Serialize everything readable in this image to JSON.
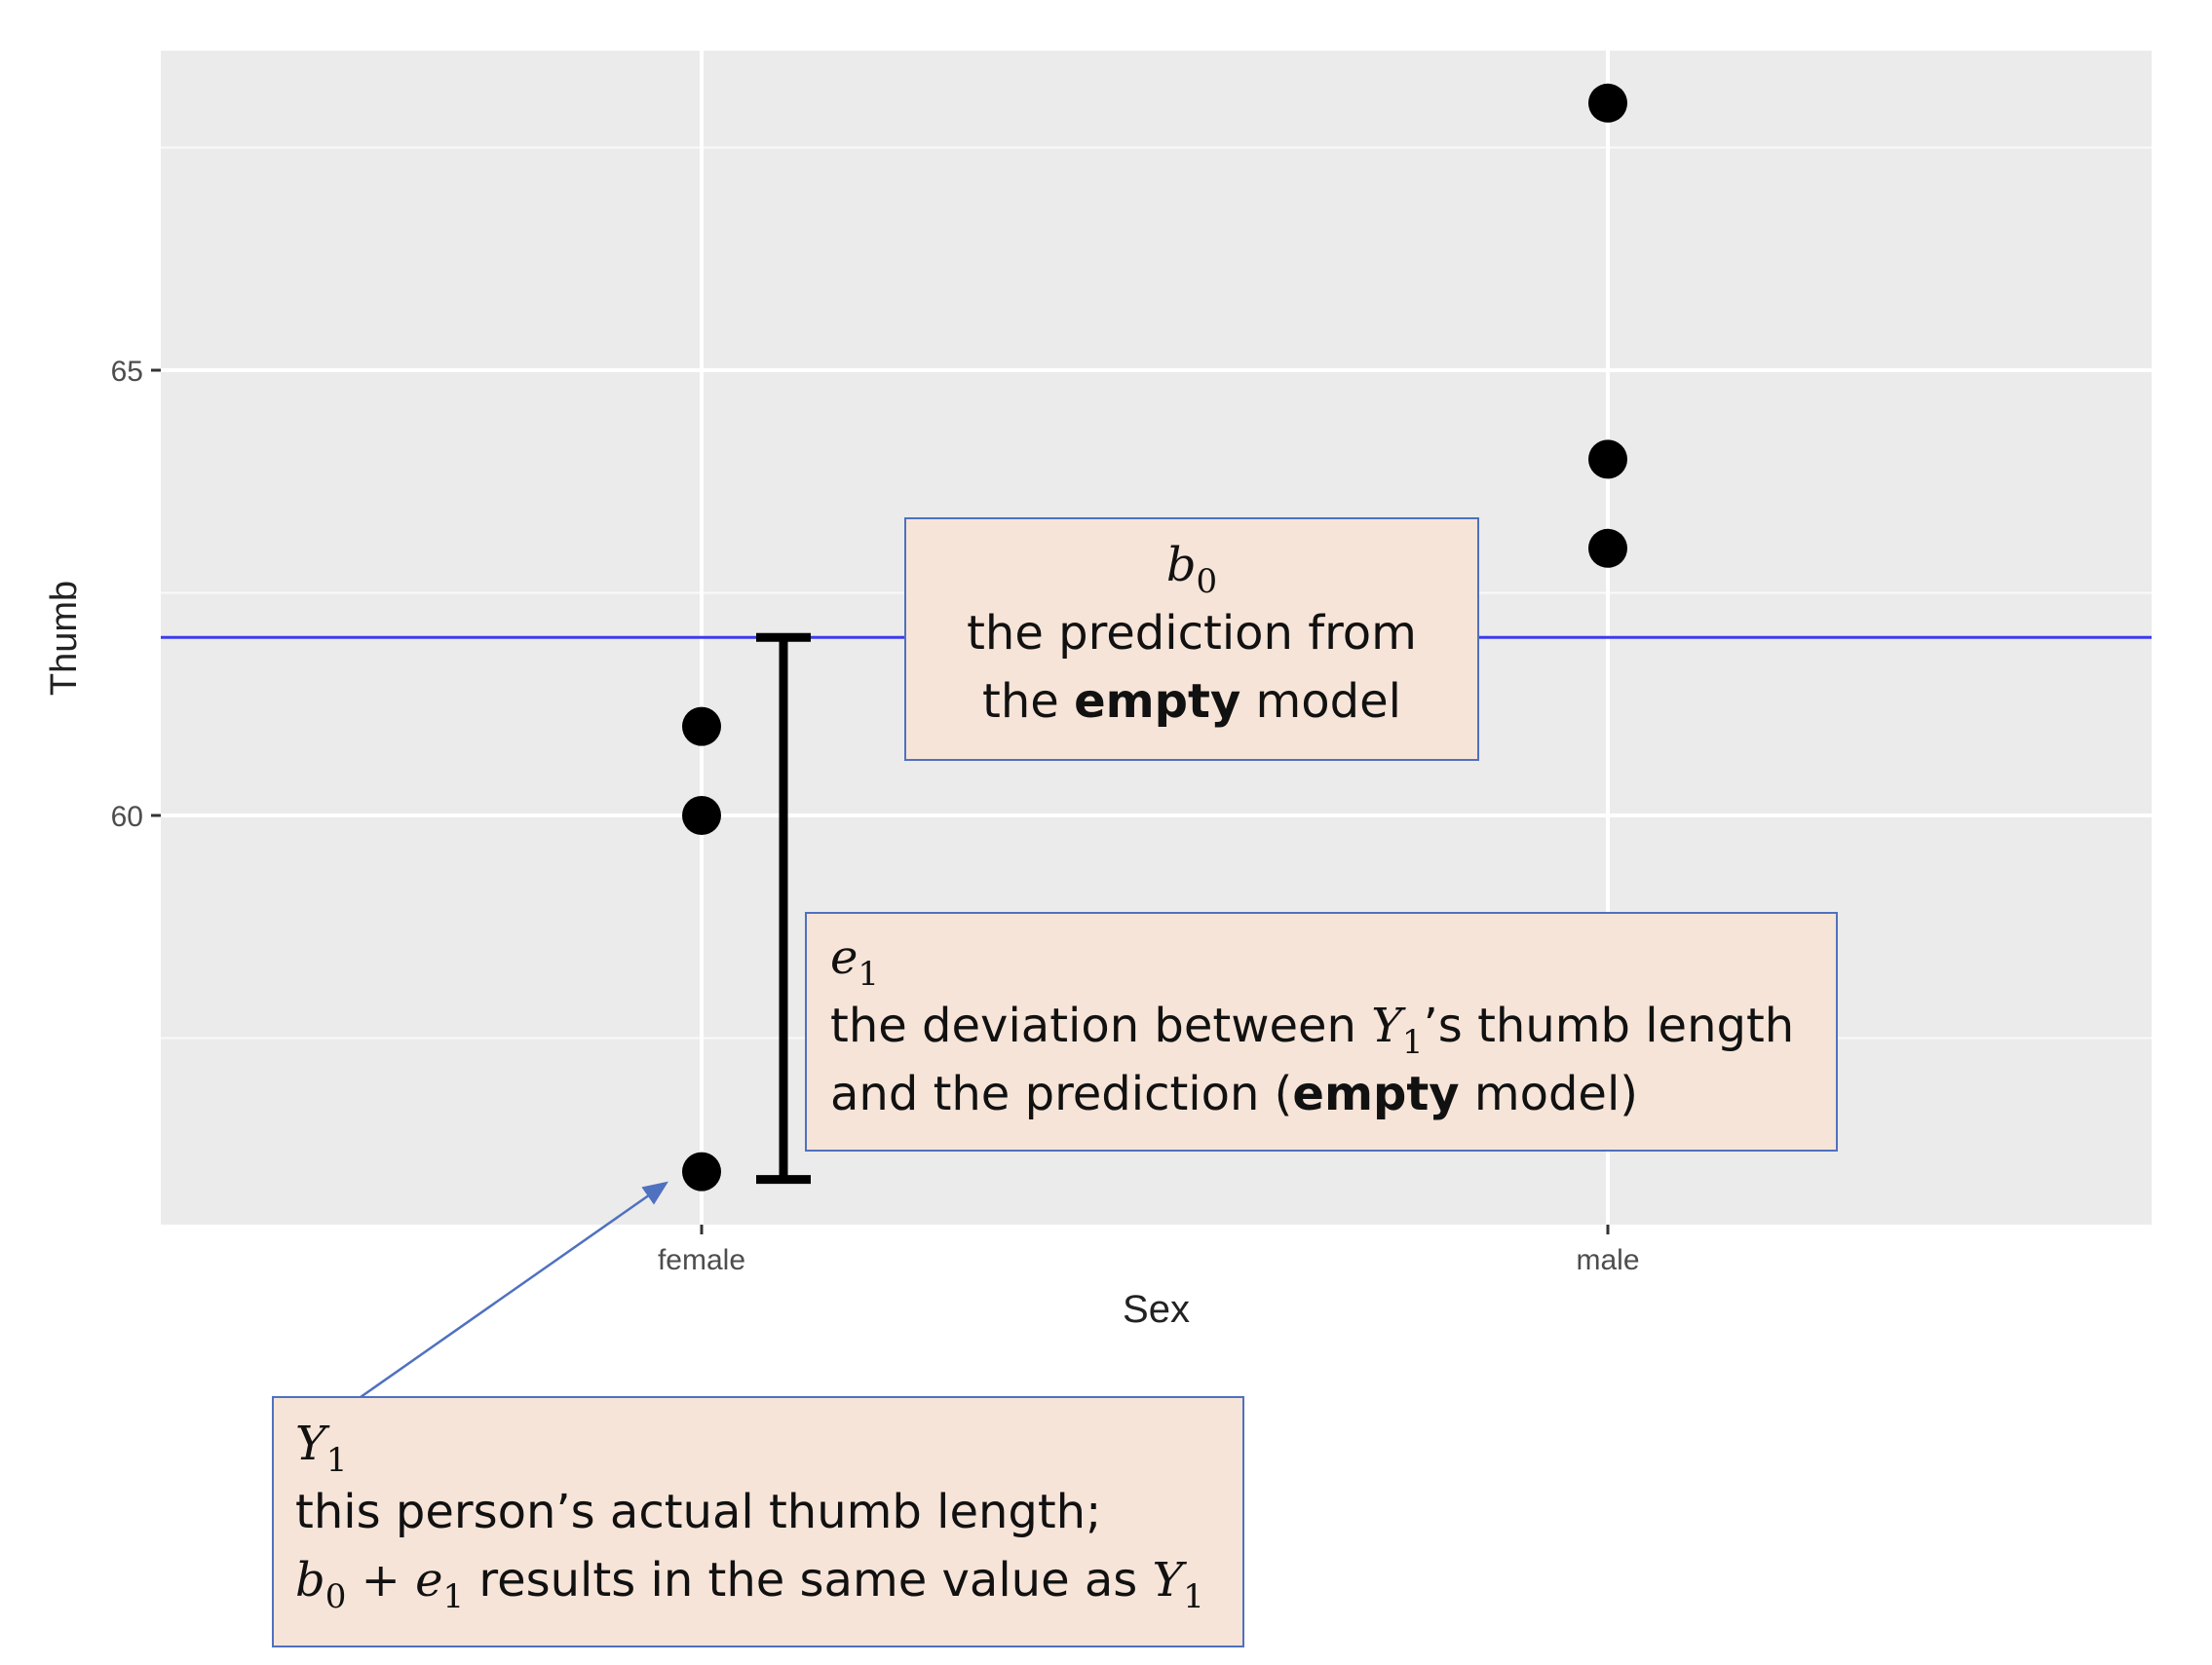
{
  "chart_data": {
    "type": "scatter",
    "xlabel": "Sex",
    "ylabel": "Thumb",
    "categories": [
      "female",
      "male"
    ],
    "y_ticks": [
      60,
      65
    ],
    "ylim": [
      55.3,
      68.5
    ],
    "grid": true,
    "points": [
      {
        "x": "female",
        "y": 61
      },
      {
        "x": "female",
        "y": 60
      },
      {
        "x": "female",
        "y": 56
      },
      {
        "x": "male",
        "y": 68
      },
      {
        "x": "male",
        "y": 64
      },
      {
        "x": "male",
        "y": 63
      }
    ],
    "hline": {
      "y": 62,
      "color": "#3b3bf0"
    },
    "errorbar": {
      "x": "female",
      "from": 56,
      "to": 62
    },
    "colors": {
      "panel": "#ebebeb",
      "grid_major": "#ffffff",
      "point": "#000000",
      "box_fill": "#f7e4d8",
      "box_border": "#4f71bf"
    }
  },
  "annotations": {
    "b0": {
      "symbol": "b",
      "sub": "0",
      "line1": "the prediction from",
      "line2_pre": "the ",
      "line2_bold": "empty",
      "line2_post": " model"
    },
    "e1": {
      "symbol": "e",
      "sub": "1",
      "line1_pre": "the deviation between ",
      "line1_sym": "Y",
      "line1_sub": "1",
      "line1_post": "’s thumb length",
      "line2_pre": "and the prediction (",
      "line2_bold": "empty",
      "line2_post": " model)"
    },
    "y1": {
      "symbol": "Y",
      "sub": "1",
      "line1": "this person’s actual thumb length;",
      "line2_b": "b",
      "line2_b_sub": "0",
      "line2_plus": " + ",
      "line2_e": "e",
      "line2_e_sub": "1",
      "line2_mid": " results in the same value as ",
      "line2_y": "Y",
      "line2_y_sub": "1"
    }
  }
}
